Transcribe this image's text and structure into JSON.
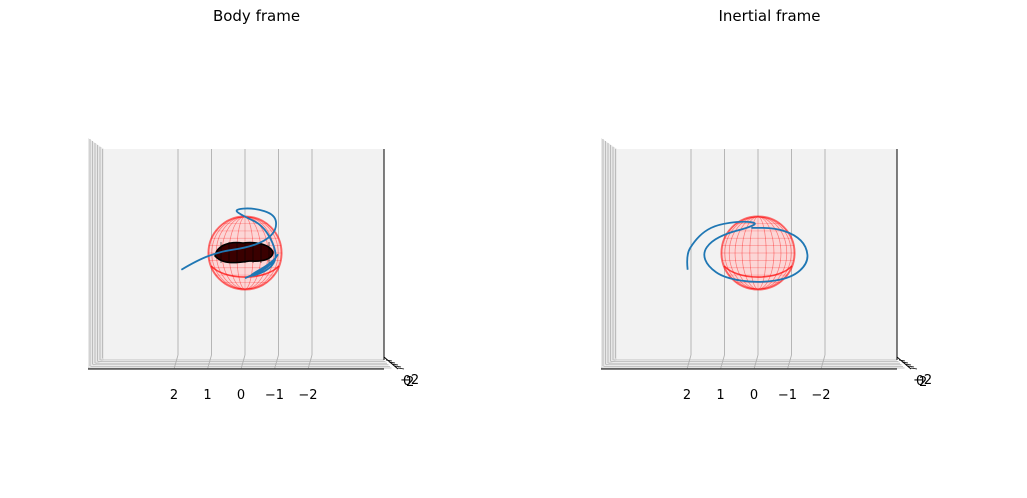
{
  "chart_data": [
    {
      "type": "line",
      "title": "Body frame",
      "view": "3d",
      "grid": true,
      "x_ticks": [
        "2",
        "1",
        "0",
        "−1",
        "−2"
      ],
      "x_tick_values": [
        2,
        1,
        0,
        -1,
        -2
      ],
      "depth_ticks": [
        "−2",
        "0",
        "2"
      ],
      "sphere": {
        "radius": 0.9,
        "color": "#ff0000",
        "center": [
          0,
          0,
          0
        ]
      },
      "blob": {
        "color": "#3a0000",
        "outline": "#000000"
      },
      "series": [
        {
          "color": "#1f77b4",
          "points": [
            [
              1.9,
              -0.5
            ],
            [
              1.4,
              -0.2
            ],
            [
              0.7,
              0.05
            ],
            [
              0.0,
              0.15
            ],
            [
              -0.6,
              0.35
            ],
            [
              -0.95,
              0.7
            ],
            [
              -0.9,
              1.15
            ],
            [
              -0.25,
              1.35
            ],
            [
              0.35,
              1.3
            ],
            [
              0.05,
              1.1
            ],
            [
              -0.5,
              0.85
            ],
            [
              -0.85,
              0.3
            ],
            [
              -0.95,
              -0.2
            ],
            [
              -0.65,
              -0.55
            ],
            [
              0.0,
              -0.75
            ],
            [
              -0.8,
              -0.3
            ],
            [
              -1.05,
              0.05
            ],
            [
              -0.7,
              -0.45
            ],
            [
              0.0,
              -0.75
            ]
          ]
        }
      ]
    },
    {
      "type": "line",
      "title": "Inertial frame",
      "view": "3d",
      "grid": true,
      "x_ticks": [
        "2",
        "1",
        "0",
        "−1",
        "−2"
      ],
      "x_tick_values": [
        2,
        1,
        0,
        -1,
        -2
      ],
      "depth_ticks": [
        "−2",
        "0",
        "2"
      ],
      "sphere": {
        "radius": 0.9,
        "color": "#ff0000",
        "center": [
          0,
          0,
          0
        ]
      },
      "series": [
        {
          "color": "#1f77b4",
          "points": [
            [
              2.1,
              -0.5
            ],
            [
              2.15,
              -0.05
            ],
            [
              1.9,
              0.35
            ],
            [
              1.6,
              0.65
            ],
            [
              1.2,
              0.85
            ],
            [
              0.5,
              0.95
            ],
            [
              0.0,
              0.9
            ],
            [
              0.3,
              0.75
            ],
            [
              0.9,
              0.6
            ],
            [
              1.4,
              0.35
            ],
            [
              1.65,
              0.0
            ],
            [
              1.5,
              -0.4
            ],
            [
              1.0,
              -0.75
            ],
            [
              0.0,
              -0.9
            ],
            [
              -1.0,
              -0.75
            ],
            [
              -1.5,
              -0.3
            ],
            [
              -1.45,
              0.2
            ],
            [
              -1.1,
              0.55
            ],
            [
              -0.5,
              0.75
            ],
            [
              0.2,
              0.75
            ]
          ]
        }
      ]
    }
  ]
}
